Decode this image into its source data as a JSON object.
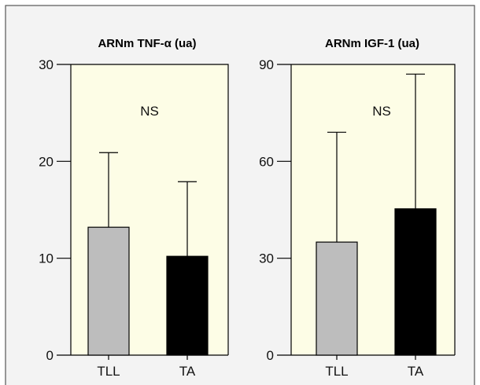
{
  "chart_data": [
    {
      "type": "bar",
      "title": "ARNm TNF-α (ua)",
      "categories": [
        "TLL",
        "TA"
      ],
      "values": [
        13.2,
        10.2
      ],
      "error_upper": [
        20.9,
        17.9
      ],
      "colors": [
        "#bdbdbd",
        "#000000"
      ],
      "ylim": [
        0,
        30
      ],
      "yticks": [
        0,
        10,
        20,
        30
      ],
      "annotation": "NS"
    },
    {
      "type": "bar",
      "title": "ARNm IGF-1 (ua)",
      "categories": [
        "TLL",
        "TA"
      ],
      "values": [
        35,
        45.3
      ],
      "error_upper": [
        69,
        87
      ],
      "colors": [
        "#bdbdbd",
        "#000000"
      ],
      "ylim": [
        0,
        90
      ],
      "yticks": [
        0,
        30,
        60,
        90
      ],
      "annotation": "NS"
    }
  ]
}
